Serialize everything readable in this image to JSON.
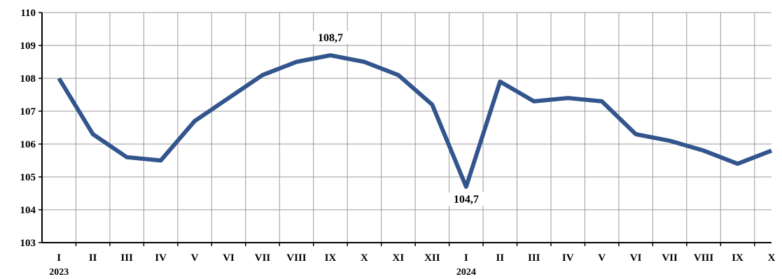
{
  "chart_data": {
    "type": "line",
    "title": "",
    "xlabel": "",
    "ylabel": "",
    "ylim": [
      103,
      110
    ],
    "yticks": [
      "103",
      "104",
      "105",
      "106",
      "107",
      "108",
      "109",
      "110"
    ],
    "grid": true,
    "categories": [
      "I",
      "II",
      "III",
      "IV",
      "V",
      "VI",
      "VII",
      "VIII",
      "IX",
      "X",
      "XI",
      "XII",
      "I",
      "II",
      "III",
      "IV",
      "V",
      "VI",
      "VII",
      "VIII",
      "IX",
      "X"
    ],
    "year_labels": [
      {
        "index": 0,
        "text": "2023"
      },
      {
        "index": 12,
        "text": "2024"
      }
    ],
    "series": [
      {
        "values": [
          108.0,
          106.3,
          105.6,
          105.5,
          106.7,
          107.4,
          108.1,
          108.5,
          108.7,
          108.5,
          108.1,
          107.2,
          104.7,
          107.9,
          107.3,
          107.4,
          107.3,
          106.3,
          106.1,
          105.8,
          105.4,
          105.8
        ],
        "color": "#33558d"
      }
    ],
    "data_labels": [
      {
        "index": 8,
        "text": "108,7",
        "placement": "above"
      },
      {
        "index": 12,
        "text": "104,7",
        "placement": "below"
      }
    ],
    "colors": {
      "grid": "#9a9a9a",
      "axis": "#000000",
      "line": "#33558d"
    }
  }
}
